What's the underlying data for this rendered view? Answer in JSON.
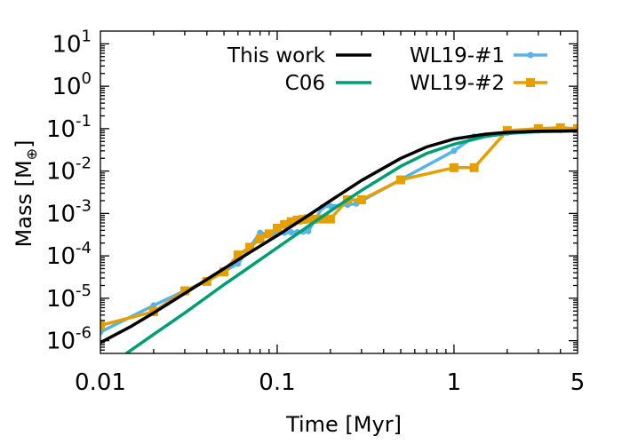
{
  "chart_data": {
    "type": "line",
    "title": "",
    "xlabel": "Time [Myr]",
    "ylabel_main": "Mass [M",
    "ylabel_sub": "⊕",
    "ylabel_close": "]",
    "xscale": "log",
    "yscale": "log",
    "xlim": [
      0.01,
      5
    ],
    "ylim": [
      5e-07,
      20
    ],
    "grid": false,
    "legend": "top",
    "x_ticks": [
      {
        "value": 0.01,
        "label": "0.01"
      },
      {
        "value": 0.1,
        "label": "0.1"
      },
      {
        "value": 1,
        "label": "1"
      },
      {
        "value": 5,
        "label": "5"
      }
    ],
    "y_ticks": [
      {
        "exp": -6,
        "base": "10",
        "sup": "-6"
      },
      {
        "exp": -5,
        "base": "10",
        "sup": "-5"
      },
      {
        "exp": -4,
        "base": "10",
        "sup": "-4"
      },
      {
        "exp": -3,
        "base": "10",
        "sup": "-3"
      },
      {
        "exp": -2,
        "base": "10",
        "sup": "-2"
      },
      {
        "exp": -1,
        "base": "10",
        "sup": "-1"
      },
      {
        "exp": 0,
        "base": "10",
        "sup": "0"
      },
      {
        "exp": 1,
        "base": "10",
        "sup": "1"
      }
    ],
    "series": [
      {
        "name": "This work",
        "color": "#000000",
        "marker": "none",
        "x": [
          0.01,
          0.015,
          0.02,
          0.03,
          0.05,
          0.07,
          0.1,
          0.15,
          0.2,
          0.3,
          0.5,
          0.7,
          1,
          1.5,
          2,
          3,
          5
        ],
        "y": [
          9e-07,
          2.2e-06,
          4.5e-06,
          1.3e-05,
          5e-05,
          0.00012,
          0.0003,
          0.0009,
          0.002,
          0.006,
          0.02,
          0.037,
          0.057,
          0.074,
          0.082,
          0.087,
          0.089
        ]
      },
      {
        "name": "C06",
        "color": "#009e73",
        "marker": "none",
        "x": [
          0.014,
          0.02,
          0.03,
          0.05,
          0.07,
          0.1,
          0.15,
          0.2,
          0.3,
          0.5,
          0.7,
          1,
          1.5,
          2,
          3,
          5
        ],
        "y": [
          5e-07,
          1.4e-06,
          4.5e-06,
          2.1e-05,
          5.5e-05,
          0.000155,
          0.0005,
          0.00115,
          0.0035,
          0.013,
          0.026,
          0.043,
          0.065,
          0.077,
          0.085,
          0.088
        ]
      },
      {
        "name": "WL19-#1",
        "color": "#56b4e9",
        "marker": "star",
        "x": [
          0.01,
          0.02,
          0.03,
          0.04,
          0.05,
          0.06,
          0.07,
          0.08,
          0.09,
          0.1,
          0.11,
          0.12,
          0.13,
          0.14,
          0.15,
          0.18,
          0.2,
          0.25,
          0.28,
          1,
          1.3,
          2,
          3,
          4,
          5
        ],
        "y": [
          1.6e-06,
          6.8e-06,
          1.5e-05,
          2.6e-05,
          4.3e-05,
          6.5e-05,
          0.00016,
          0.00035,
          0.00032,
          0.00033,
          0.00035,
          0.00036,
          0.00036,
          0.00037,
          0.00038,
          0.0014,
          0.0015,
          0.0016,
          0.0017,
          0.03,
          0.065,
          0.08,
          0.09,
          0.092,
          0.093
        ]
      },
      {
        "name": "WL19-#2",
        "color": "#e69f00",
        "marker": "square",
        "x": [
          0.01,
          0.02,
          0.03,
          0.04,
          0.05,
          0.06,
          0.07,
          0.08,
          0.09,
          0.1,
          0.11,
          0.12,
          0.13,
          0.14,
          0.15,
          0.16,
          0.18,
          0.2,
          0.25,
          0.3,
          0.5,
          1,
          1.3,
          2,
          3,
          4,
          5
        ],
        "y": [
          2.3e-06,
          4.8e-06,
          1.5e-05,
          2.5e-05,
          4.2e-05,
          0.000105,
          0.00016,
          0.00025,
          0.00033,
          0.00045,
          0.00055,
          0.00064,
          0.0007,
          0.00072,
          0.00075,
          0.00073,
          0.00074,
          0.00074,
          0.0021,
          0.0021,
          0.0062,
          0.012,
          0.012,
          0.09,
          0.1,
          0.105,
          0.1
        ]
      }
    ]
  }
}
